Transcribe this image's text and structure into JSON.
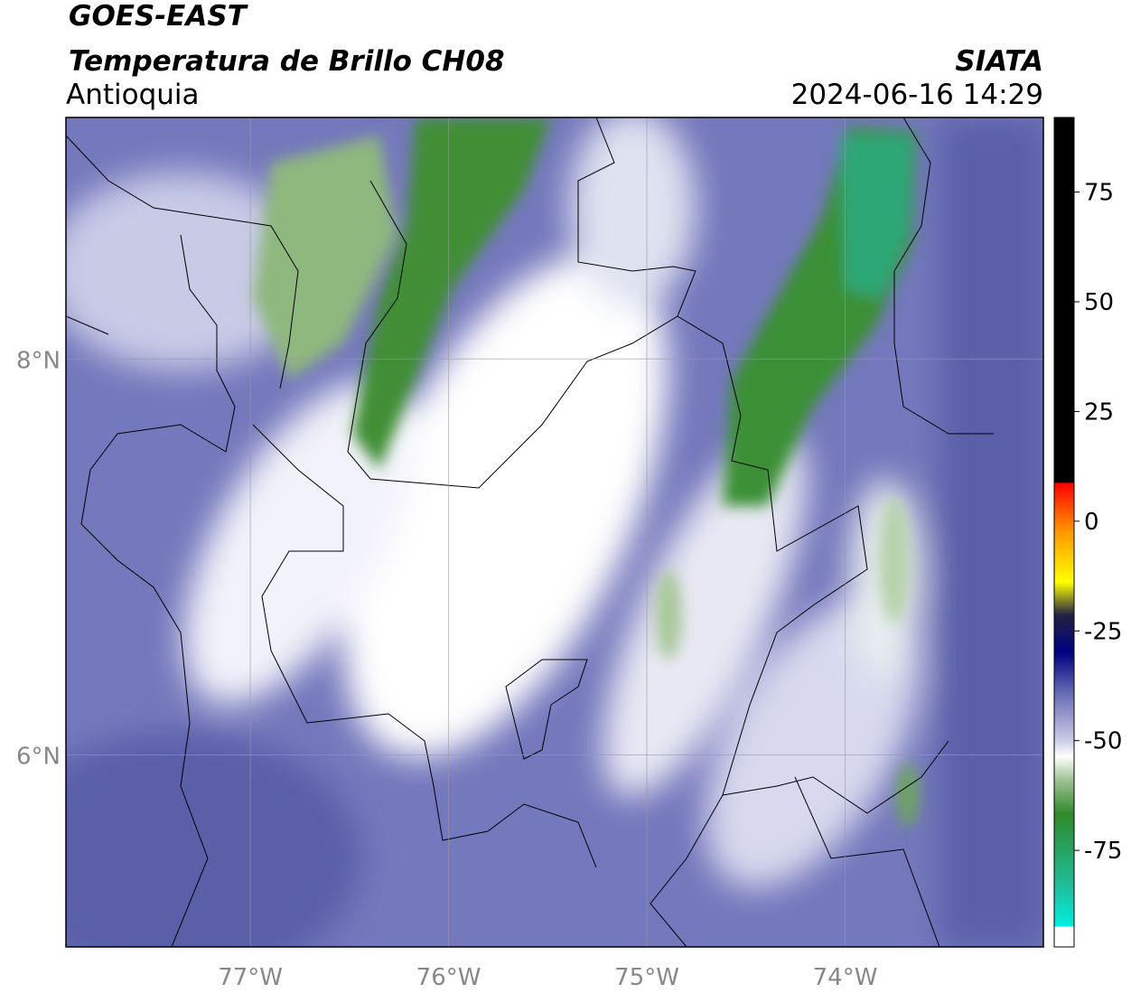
{
  "header": {
    "source": "GOES-EAST",
    "title": "Temperatura de Brillo CH08",
    "organization": "SIATA",
    "region": "Antioquia",
    "datetime": "2024-06-16 14:29"
  },
  "map": {
    "xlim": [
      -77.93,
      -73.0
    ],
    "ylim": [
      5.03,
      9.22
    ],
    "xticks": [
      {
        "value": -77,
        "label": "77°W"
      },
      {
        "value": -76,
        "label": "76°W"
      },
      {
        "value": -75,
        "label": "75°W"
      },
      {
        "value": -74,
        "label": "74°W"
      }
    ],
    "yticks": [
      {
        "value": 6,
        "label": "6°N"
      },
      {
        "value": 8,
        "label": "8°N"
      }
    ],
    "grid": true
  },
  "colorbar": {
    "lim": [
      -97,
      92
    ],
    "ticks": [
      75,
      50,
      25,
      0,
      -25,
      -50,
      -75
    ]
  }
}
